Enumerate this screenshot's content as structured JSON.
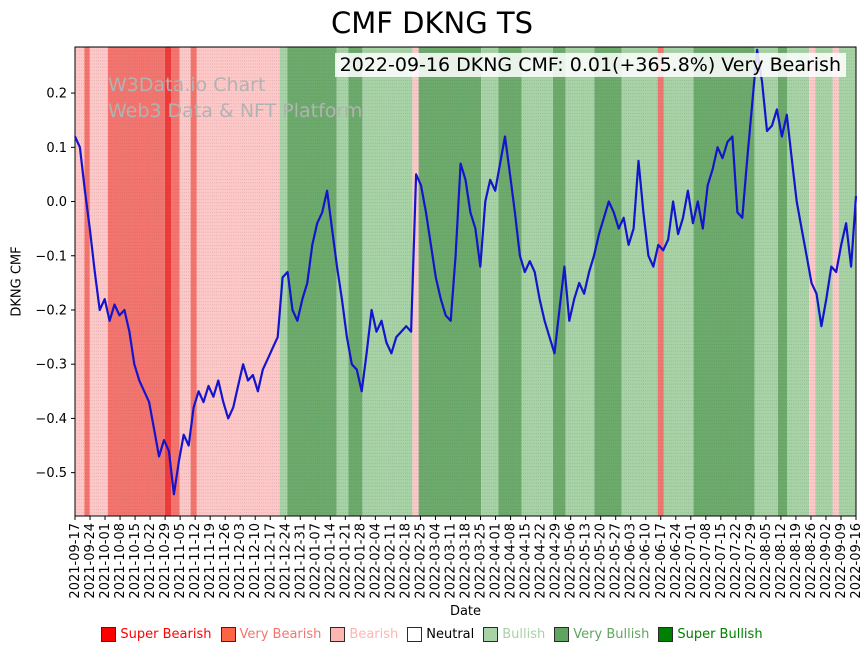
{
  "title": "CMF DKNG TS",
  "annotation": "2022-09-16 DKNG CMF: 0.01(+365.8%) Very Bearish",
  "watermark": {
    "line1": "W3Data.io Chart",
    "line2": "Web3 Data & NFT Platform"
  },
  "chart_data": {
    "type": "line",
    "title": "CMF DKNG TS",
    "xlabel": "Date",
    "ylabel": "DKNG CMF",
    "ylim": [
      -0.58,
      0.285
    ],
    "yticks": [
      0.2,
      0.1,
      0.0,
      -0.1,
      -0.2,
      -0.3,
      -0.4,
      -0.5
    ],
    "grid": "vertical-dotted-daily",
    "x_tick_labels": [
      "2021-09-17",
      "2021-09-24",
      "2021-10-01",
      "2021-10-08",
      "2021-10-15",
      "2021-10-22",
      "2021-10-29",
      "2021-11-05",
      "2021-11-12",
      "2021-11-19",
      "2021-11-26",
      "2021-12-03",
      "2021-12-10",
      "2021-12-17",
      "2021-12-24",
      "2021-12-31",
      "2022-01-07",
      "2022-01-14",
      "2022-01-21",
      "2022-01-28",
      "2022-02-04",
      "2022-02-11",
      "2022-02-18",
      "2022-02-25",
      "2022-03-04",
      "2022-03-11",
      "2022-03-18",
      "2022-03-25",
      "2022-04-01",
      "2022-04-08",
      "2022-04-15",
      "2022-04-22",
      "2022-04-29",
      "2022-05-06",
      "2022-05-13",
      "2022-05-20",
      "2022-05-27",
      "2022-06-03",
      "2022-06-10",
      "2022-06-17",
      "2022-06-24",
      "2022-07-01",
      "2022-07-08",
      "2022-07-15",
      "2022-07-22",
      "2022-07-29",
      "2022-08-05",
      "2022-08-12",
      "2022-08-19",
      "2022-08-26",
      "2022-09-02",
      "2022-09-09",
      "2022-09-16"
    ],
    "series": [
      {
        "name": "DKNG CMF",
        "color": "#1414cf",
        "values": [
          0.12,
          0.1,
          0.02,
          -0.05,
          -0.13,
          -0.2,
          -0.18,
          -0.22,
          -0.19,
          -0.21,
          -0.2,
          -0.24,
          -0.3,
          -0.33,
          -0.35,
          -0.37,
          -0.42,
          -0.47,
          -0.44,
          -0.46,
          -0.54,
          -0.48,
          -0.43,
          -0.45,
          -0.38,
          -0.35,
          -0.37,
          -0.34,
          -0.36,
          -0.33,
          -0.37,
          -0.4,
          -0.38,
          -0.34,
          -0.3,
          -0.33,
          -0.32,
          -0.35,
          -0.31,
          -0.29,
          -0.27,
          -0.25,
          -0.14,
          -0.13,
          -0.2,
          -0.22,
          -0.18,
          -0.15,
          -0.08,
          -0.04,
          -0.02,
          0.02,
          -0.05,
          -0.12,
          -0.18,
          -0.25,
          -0.3,
          -0.31,
          -0.35,
          -0.28,
          -0.2,
          -0.24,
          -0.22,
          -0.26,
          -0.28,
          -0.25,
          -0.24,
          -0.23,
          -0.24,
          0.05,
          0.03,
          -0.02,
          -0.08,
          -0.14,
          -0.18,
          -0.21,
          -0.22,
          -0.1,
          0.07,
          0.04,
          -0.02,
          -0.05,
          -0.12,
          0.0,
          0.04,
          0.02,
          0.07,
          0.12,
          0.05,
          -0.02,
          -0.1,
          -0.13,
          -0.11,
          -0.13,
          -0.18,
          -0.22,
          -0.25,
          -0.28,
          -0.2,
          -0.12,
          -0.22,
          -0.18,
          -0.15,
          -0.17,
          -0.13,
          -0.1,
          -0.06,
          -0.03,
          0.0,
          -0.02,
          -0.05,
          -0.03,
          -0.08,
          -0.05,
          0.075,
          -0.02,
          -0.1,
          -0.12,
          -0.08,
          -0.09,
          -0.07,
          0.0,
          -0.06,
          -0.03,
          0.02,
          -0.04,
          0.0,
          -0.05,
          0.03,
          0.06,
          0.1,
          0.08,
          0.11,
          0.12,
          -0.02,
          -0.03,
          0.08,
          0.18,
          0.28,
          0.22,
          0.13,
          0.14,
          0.17,
          0.12,
          0.16,
          0.08,
          0.0,
          -0.05,
          -0.1,
          -0.15,
          -0.17,
          -0.23,
          -0.18,
          -0.12,
          -0.13,
          -0.08,
          -0.04,
          -0.12,
          0.01
        ]
      }
    ],
    "band_colors": {
      "super_bearish": "#ee3b3b",
      "very_bearish": "#f4756f",
      "bearish": "#ffc8c8",
      "neutral": "#ffffff",
      "bullish": "#a7d3a7",
      "very_bullish": "#6cab6c",
      "super_bullish": "#2e8b2e"
    },
    "bands": [
      {
        "f": 0.0,
        "t": 0.012,
        "s": "bearish"
      },
      {
        "f": 0.012,
        "t": 0.019,
        "s": "very_bearish"
      },
      {
        "f": 0.019,
        "t": 0.042,
        "s": "bearish"
      },
      {
        "f": 0.042,
        "t": 0.115,
        "s": "very_bearish"
      },
      {
        "f": 0.115,
        "t": 0.123,
        "s": "super_bearish"
      },
      {
        "f": 0.123,
        "t": 0.134,
        "s": "very_bearish"
      },
      {
        "f": 0.134,
        "t": 0.148,
        "s": "bearish"
      },
      {
        "f": 0.148,
        "t": 0.156,
        "s": "very_bearish"
      },
      {
        "f": 0.156,
        "t": 0.262,
        "s": "bearish"
      },
      {
        "f": 0.262,
        "t": 0.272,
        "s": "bullish"
      },
      {
        "f": 0.272,
        "t": 0.335,
        "s": "very_bullish"
      },
      {
        "f": 0.335,
        "t": 0.35,
        "s": "bullish"
      },
      {
        "f": 0.35,
        "t": 0.368,
        "s": "very_bullish"
      },
      {
        "f": 0.368,
        "t": 0.432,
        "s": "bullish"
      },
      {
        "f": 0.432,
        "t": 0.44,
        "s": "bearish"
      },
      {
        "f": 0.44,
        "t": 0.52,
        "s": "very_bullish"
      },
      {
        "f": 0.52,
        "t": 0.542,
        "s": "bullish"
      },
      {
        "f": 0.542,
        "t": 0.572,
        "s": "very_bullish"
      },
      {
        "f": 0.572,
        "t": 0.612,
        "s": "bullish"
      },
      {
        "f": 0.612,
        "t": 0.628,
        "s": "very_bullish"
      },
      {
        "f": 0.628,
        "t": 0.665,
        "s": "bullish"
      },
      {
        "f": 0.665,
        "t": 0.7,
        "s": "very_bullish"
      },
      {
        "f": 0.7,
        "t": 0.746,
        "s": "bullish"
      },
      {
        "f": 0.746,
        "t": 0.754,
        "s": "very_bearish"
      },
      {
        "f": 0.754,
        "t": 0.792,
        "s": "bullish"
      },
      {
        "f": 0.792,
        "t": 0.87,
        "s": "very_bullish"
      },
      {
        "f": 0.87,
        "t": 0.9,
        "s": "bullish"
      },
      {
        "f": 0.9,
        "t": 0.912,
        "s": "very_bullish"
      },
      {
        "f": 0.912,
        "t": 0.94,
        "s": "bullish"
      },
      {
        "f": 0.94,
        "t": 0.948,
        "s": "bearish"
      },
      {
        "f": 0.948,
        "t": 0.97,
        "s": "bullish"
      },
      {
        "f": 0.97,
        "t": 0.978,
        "s": "bearish"
      },
      {
        "f": 0.978,
        "t": 1.0,
        "s": "bullish"
      }
    ],
    "legend": {
      "position": "bottom",
      "items": [
        {
          "label": "Super Bearish",
          "color": "#ff0000",
          "text_color": "#ff0000"
        },
        {
          "label": "Very Bearish",
          "color": "#ff6347",
          "text_color": "#f4756f"
        },
        {
          "label": "Bearish",
          "color": "#ffb6b1",
          "text_color": "#ffb6b1"
        },
        {
          "label": "Neutral",
          "color": "#ffffff",
          "text_color": "#000000"
        },
        {
          "label": "Bullish",
          "color": "#a7d3a7",
          "text_color": "#a7d3a7"
        },
        {
          "label": "Very Bullish",
          "color": "#5fa55f",
          "text_color": "#5fa55f"
        },
        {
          "label": "Super Bullish",
          "color": "#008000",
          "text_color": "#008000"
        }
      ]
    }
  }
}
